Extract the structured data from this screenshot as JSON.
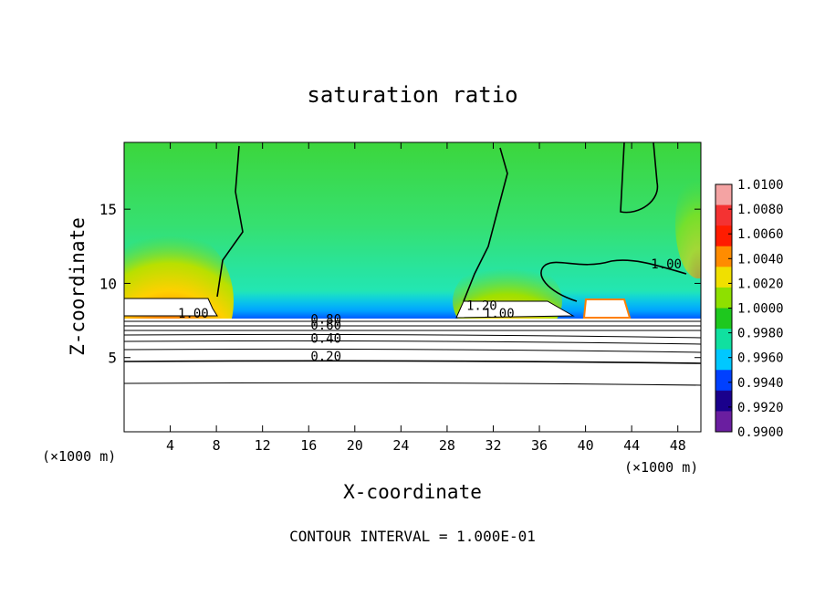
{
  "chart_data": {
    "type": "heatmap",
    "title": "saturation ratio",
    "xlabel": "X-coordinate",
    "ylabel": "Z-coordinate",
    "x_unit": "(×1000 m)",
    "x_ticks": [
      4,
      8,
      12,
      16,
      20,
      24,
      28,
      32,
      36,
      40,
      44,
      48
    ],
    "y_ticks": [
      5,
      10,
      15
    ],
    "xlim": [
      0,
      50
    ],
    "ylim": [
      0,
      19.5
    ],
    "colorbar": {
      "ticks": [
        "1.0100",
        "1.0080",
        "1.0060",
        "1.0040",
        "1.0020",
        "1.0000",
        "0.9980",
        "0.9960",
        "0.9940",
        "0.9920",
        "0.9900"
      ],
      "colors": [
        "#f4a3a3",
        "#f43232",
        "#ff1c00",
        "#ff8c00",
        "#f0e000",
        "#8ee000",
        "#1ec81e",
        "#10e0a0",
        "#00c8ff",
        "#0040ff",
        "#1a008c",
        "#6a1ea0"
      ]
    },
    "contour_labels": [
      {
        "text": "1.00",
        "x": 6.0,
        "y": 7.7
      },
      {
        "text": "1.00",
        "x": 47.0,
        "y": 11.0
      },
      {
        "text": "1.20",
        "x": 31.0,
        "y": 8.2
      },
      {
        "text": "1.00",
        "x": 32.5,
        "y": 7.7
      },
      {
        "text": "0.80",
        "x": 17.5,
        "y": 7.3
      },
      {
        "text": "0.60",
        "x": 17.5,
        "y": 6.9
      },
      {
        "text": "0.40",
        "x": 17.5,
        "y": 6.0
      },
      {
        "text": "0.20",
        "x": 17.5,
        "y": 4.8
      }
    ],
    "contour_interval_text": "CONTOUR INTERVAL = 1.000E-01"
  }
}
